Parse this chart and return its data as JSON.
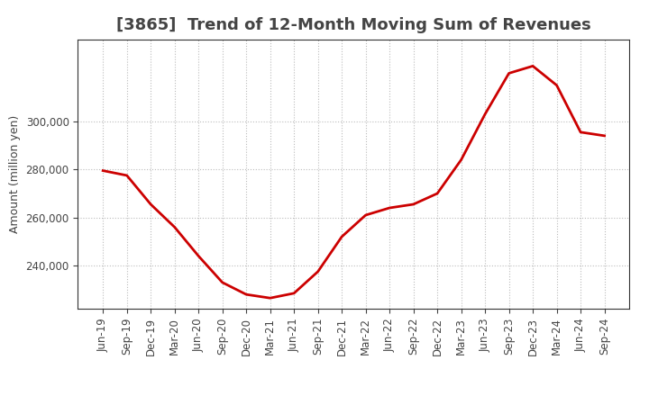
{
  "title": "[3865]  Trend of 12-Month Moving Sum of Revenues",
  "ylabel": "Amount (million yen)",
  "background_color": "#ffffff",
  "line_color": "#cc0000",
  "grid_color": "#bbbbbb",
  "x_labels": [
    "Jun-19",
    "Sep-19",
    "Dec-19",
    "Mar-20",
    "Jun-20",
    "Sep-20",
    "Dec-20",
    "Mar-21",
    "Jun-21",
    "Sep-21",
    "Dec-21",
    "Mar-22",
    "Jun-22",
    "Sep-22",
    "Dec-22",
    "Mar-23",
    "Jun-23",
    "Sep-23",
    "Dec-23",
    "Mar-24",
    "Jun-24",
    "Sep-24"
  ],
  "x_values": [
    0,
    1,
    2,
    3,
    4,
    5,
    6,
    7,
    8,
    9,
    10,
    11,
    12,
    13,
    14,
    15,
    16,
    17,
    18,
    19,
    20,
    21
  ],
  "y_values": [
    279500,
    277500,
    265500,
    256000,
    244000,
    233000,
    228000,
    226500,
    228500,
    237500,
    252000,
    261000,
    264000,
    265500,
    270000,
    284000,
    303000,
    320000,
    323000,
    315000,
    295500,
    294000
  ],
  "yticks": [
    240000,
    260000,
    280000,
    300000
  ],
  "ylim_min": 222000,
  "ylim_max": 334000,
  "title_fontsize": 13,
  "label_fontsize": 9,
  "tick_fontsize": 8.5,
  "title_color": "#444444",
  "tick_color": "#444444",
  "spine_color": "#333333"
}
